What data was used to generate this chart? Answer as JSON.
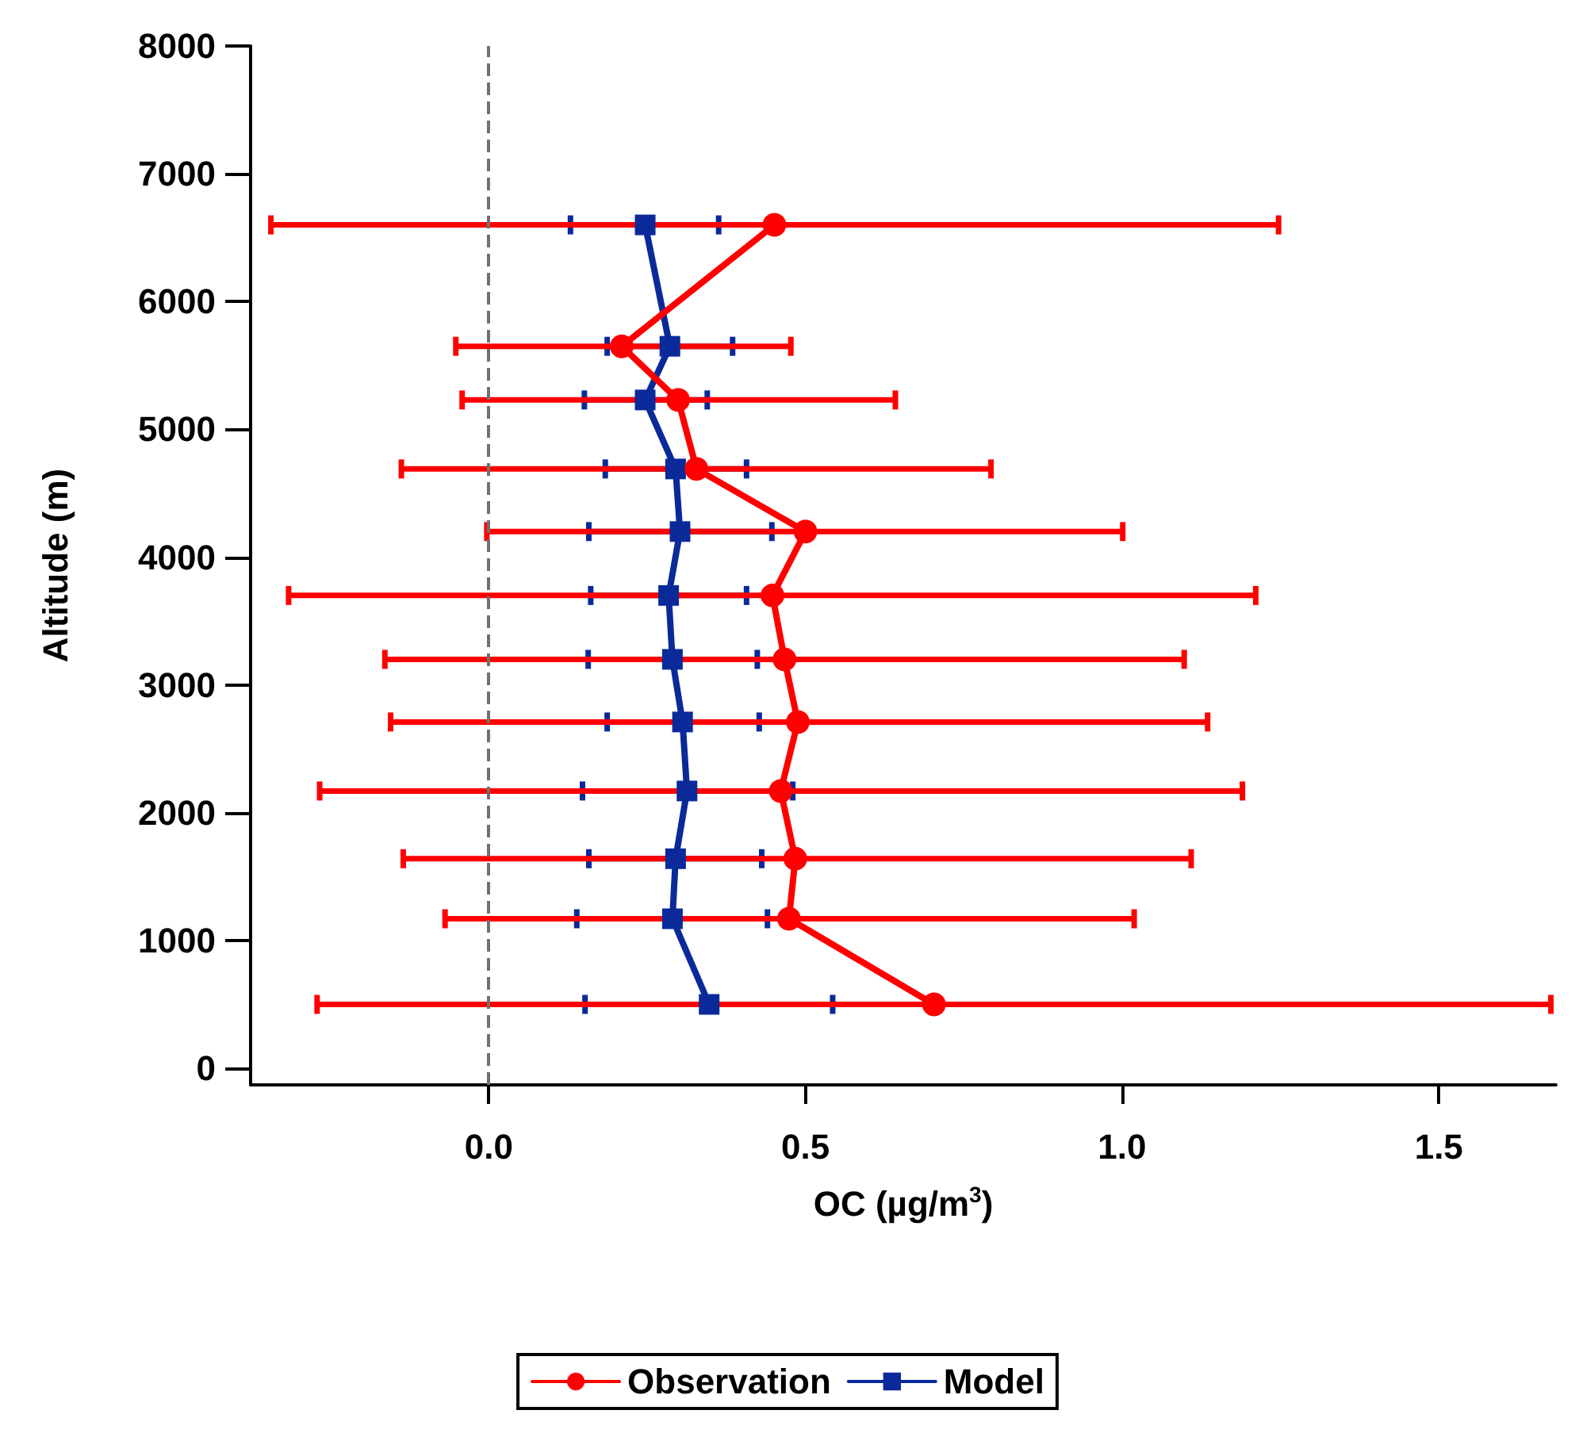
{
  "chart_data": {
    "type": "line",
    "xlabel": "OC (µg/m$^{3}$)",
    "ylabel": "Altitude (m)",
    "xlim": [
      -0.376,
      1.685
    ],
    "xticks": [
      {
        "value": 0,
        "label": "0.0"
      },
      {
        "value": 0.5,
        "label": "0.5"
      },
      {
        "value": 1,
        "label": "1.0"
      },
      {
        "value": 1.5,
        "label": "1.5"
      }
    ],
    "ylim": [
      -130,
      8000
    ],
    "yticks": [
      0,
      1000,
      2000,
      3000,
      4000,
      5000,
      6000,
      7000,
      8000
    ],
    "grid": false,
    "legend": "bottom",
    "line_style": "solid",
    "ref_lines": [
      {
        "axis": "x",
        "value": 0,
        "color": "#707070",
        "line_style": "dashed"
      }
    ],
    "series": [
      {
        "name": "Model",
        "color": "#0a2a9a",
        "marker": "square",
        "x": [
          0.247,
          0.286,
          0.247,
          0.295,
          0.302,
          0.284,
          0.29,
          0.306,
          0.313,
          0.295,
          0.29,
          0.348
        ],
        "values": [
          6600,
          5650,
          5230,
          4690,
          4200,
          3700,
          3200,
          2710,
          2170,
          1640,
          1170,
          500
        ],
        "xerrors": [
          [
            0.129,
            0.363
          ],
          [
            0.187,
            0.385
          ],
          [
            0.151,
            0.345
          ],
          [
            0.184,
            0.407
          ],
          [
            0.158,
            0.447
          ],
          [
            0.161,
            0.407
          ],
          [
            0.157,
            0.424
          ],
          [
            0.187,
            0.427
          ],
          [
            0.148,
            0.48
          ],
          [
            0.158,
            0.431
          ],
          [
            0.139,
            0.44
          ],
          [
            0.152,
            0.543
          ]
        ]
      },
      {
        "name": "Observation",
        "color": "#ff0000",
        "marker": "circle",
        "x": [
          0.451,
          0.21,
          0.299,
          0.328,
          0.5,
          0.448,
          0.467,
          0.488,
          0.461,
          0.484,
          0.474,
          0.703
        ],
        "values": [
          6600,
          5650,
          5230,
          4690,
          4200,
          3700,
          3200,
          2710,
          2170,
          1640,
          1170,
          500
        ],
        "xerrors": [
          [
            -0.344,
            1.247
          ],
          [
            -0.052,
            0.477
          ],
          [
            -0.042,
            0.642
          ],
          [
            -0.138,
            0.793
          ],
          [
            -0.003,
            1.001
          ],
          [
            -0.316,
            1.211
          ],
          [
            -0.164,
            1.098
          ],
          [
            -0.155,
            1.135
          ],
          [
            -0.267,
            1.19
          ],
          [
            -0.135,
            1.109
          ],
          [
            -0.069,
            1.019
          ],
          [
            -0.271,
            1.677
          ]
        ]
      }
    ]
  }
}
